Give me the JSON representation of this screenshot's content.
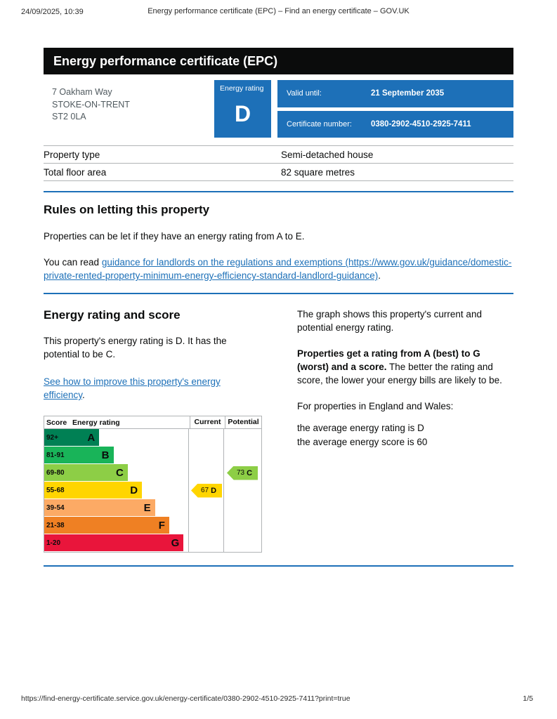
{
  "print_header": {
    "datetime": "24/09/2025, 10:39",
    "title": "Energy performance certificate (EPC) – Find an energy certificate – GOV.UK"
  },
  "banner": {
    "title": "Energy performance certificate (EPC)"
  },
  "summary": {
    "address_line1": "7 Oakham Way",
    "address_line2": "STOKE-ON-TRENT",
    "address_line3": "ST2 0LA",
    "energy_rating_label": "Energy rating",
    "energy_rating": "D",
    "valid_until_label": "Valid until:",
    "valid_until_value": "21 September 2035",
    "certificate_number_label": "Certificate number:",
    "certificate_number_value": "0380-2902-4510-2925-7411"
  },
  "property_table": {
    "rows": [
      {
        "label": "Property type",
        "value": "Semi-detached house"
      },
      {
        "label": "Total floor area",
        "value": "82 square metres"
      }
    ]
  },
  "rules_section": {
    "heading": "Rules on letting this property",
    "paragraph1": "Properties can be let if they have an energy rating from A to E.",
    "paragraph2_prefix": "You can read ",
    "guidance_link_text": "guidance for landlords on the regulations and exemptions (https://www.gov.uk/guidance/domestic-private-rented-property-minimum-energy-efficiency-standard-landlord-guidance)",
    "paragraph2_suffix": "."
  },
  "rating_section": {
    "heading": "Energy rating and score",
    "paragraph1": "This property's energy rating is D. It has the potential to be C.",
    "improve_link_text": "See how to improve this property's energy efficiency",
    "improve_link_suffix": ".",
    "right_column": {
      "p1": "The graph shows this property's current and potential energy rating.",
      "p2_bold": "Properties get a rating from A (best) to G (worst) and a score.",
      "p2_rest": " The better the rating and score, the lower your energy bills are likely to be.",
      "p3": "For properties in England and Wales:",
      "p4_line1": "the average energy rating is D",
      "p4_line2": "the average energy score is 60"
    }
  },
  "chart_data": {
    "type": "epc-rating-chart",
    "headers": {
      "score": "Score",
      "rating": "Energy rating",
      "current": "Current",
      "potential": "Potential"
    },
    "bands": [
      {
        "score": "92+",
        "letter": "A",
        "color": "#008054",
        "width_pct": 25
      },
      {
        "score": "81-91",
        "letter": "B",
        "color": "#19b459",
        "width_pct": 37
      },
      {
        "score": "69-80",
        "letter": "C",
        "color": "#8dce46",
        "width_pct": 49
      },
      {
        "score": "55-68",
        "letter": "D",
        "color": "#ffd500",
        "width_pct": 61
      },
      {
        "score": "39-54",
        "letter": "E",
        "color": "#fcaa65",
        "width_pct": 72
      },
      {
        "score": "21-38",
        "letter": "F",
        "color": "#ef8023",
        "width_pct": 84
      },
      {
        "score": "1-20",
        "letter": "G",
        "color": "#e9153b",
        "width_pct": 96
      }
    ],
    "current": {
      "score": "67",
      "letter": "D",
      "color": "#ffd500",
      "band_index": 3
    },
    "potential": {
      "score": "73",
      "letter": "C",
      "color": "#8dce46",
      "band_index": 2
    }
  },
  "footer": {
    "url": "https://find-energy-certificate.service.gov.uk/energy-certificate/0380-2902-4510-2925-7411?print=true",
    "page": "1/5"
  }
}
